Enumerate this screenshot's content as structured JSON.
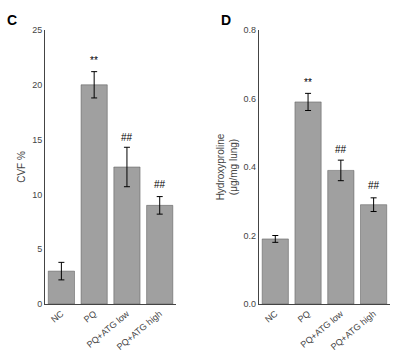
{
  "chart_data": [
    {
      "type": "bar",
      "title": "C",
      "categories": [
        "NC",
        "PQ",
        "PQ+ATG low",
        "PQ+ATG high"
      ],
      "values": [
        3.0,
        20.0,
        12.5,
        9.0
      ],
      "errors": [
        0.8,
        1.2,
        1.8,
        0.8
      ],
      "ylabel": "CVF %",
      "ylim": [
        0,
        25
      ],
      "yticks": [
        0,
        5,
        10,
        15,
        20,
        25
      ],
      "color": "#a0a0a0",
      "grid": false,
      "annotations": [
        {
          "x": "PQ",
          "text": "**",
          "y": 21.5
        },
        {
          "x": "PQ+ATG low",
          "text": "##",
          "y": 14.5
        },
        {
          "x": "PQ+ATG high",
          "text": "##",
          "y": 10.2
        }
      ]
    },
    {
      "type": "bar",
      "title": "D",
      "categories": [
        "NC",
        "PQ",
        "PQ+ATG low",
        "PQ+ATG high"
      ],
      "values": [
        0.19,
        0.59,
        0.39,
        0.29
      ],
      "errors": [
        0.01,
        0.025,
        0.03,
        0.02
      ],
      "ylabel": "Hydroxyproline\n(μg/mg lung)",
      "ylim": [
        0.0,
        0.8
      ],
      "yticks": [
        {
          "value": 0.0,
          "label": "0.0"
        },
        0.2,
        0.4,
        0.6,
        0.8
      ],
      "color": "#a0a0a0",
      "grid": false,
      "annotations": [
        {
          "x": "PQ",
          "text": "**",
          "y": 0.625
        },
        {
          "x": "PQ+ATG low",
          "text": "##",
          "y": 0.43
        },
        {
          "x": "PQ+ATG high",
          "text": "##",
          "y": 0.325
        }
      ]
    }
  ]
}
